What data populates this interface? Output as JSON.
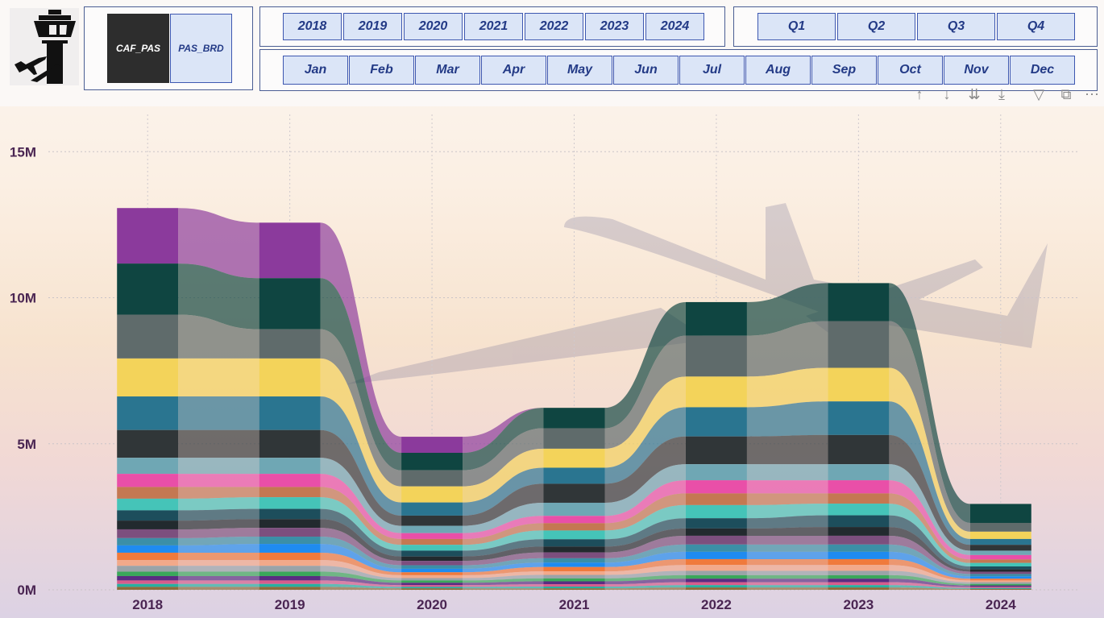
{
  "filters": {
    "measures": [
      {
        "label": "CAF_PAS",
        "selected": true
      },
      {
        "label": "PAS_BRD",
        "selected": false
      }
    ],
    "years": [
      "2018",
      "2019",
      "2020",
      "2021",
      "2022",
      "2023",
      "2024"
    ],
    "quarters": [
      "Q1",
      "Q2",
      "Q3",
      "Q4"
    ],
    "months": [
      "Jan",
      "Feb",
      "Mar",
      "Apr",
      "May",
      "Jun",
      "Jul",
      "Aug",
      "Sep",
      "Oct",
      "Nov",
      "Dec"
    ]
  },
  "visual_header_icons": [
    "arrow-up-icon",
    "arrow-down-icon",
    "double-arrow-down-icon",
    "expand-hierarchy-icon",
    "filter-icon",
    "focus-mode-icon",
    "more-options-icon"
  ],
  "chart_data": {
    "type": "ribbon",
    "categories": [
      "2018",
      "2019",
      "2020",
      "2021",
      "2022",
      "2023",
      "2024"
    ],
    "ylim": [
      0,
      16000000
    ],
    "yticks": [
      {
        "value": 0,
        "label": "0M"
      },
      {
        "value": 5000000,
        "label": "5M"
      },
      {
        "value": 10000000,
        "label": "10M"
      },
      {
        "value": 15000000,
        "label": "15M"
      }
    ],
    "grid": true,
    "series": [
      {
        "color": "#8b3a9c",
        "values": [
          1.9,
          1.9,
          0.55,
          0,
          0,
          0,
          0
        ]
      },
      {
        "color": "#0f4541",
        "values": [
          1.75,
          1.75,
          0.6,
          0.7,
          1.15,
          1.3,
          0.65
        ]
      },
      {
        "color": "#5f6b6b",
        "values": [
          1.5,
          1.0,
          0.55,
          0.7,
          1.4,
          1.6,
          0.3
        ]
      },
      {
        "color": "#f3d35a",
        "values": [
          1.3,
          1.3,
          0.55,
          0.65,
          1.05,
          1.15,
          0.25
        ]
      },
      {
        "color": "#2a7590",
        "values": [
          1.15,
          1.15,
          0.45,
          0.55,
          1.0,
          1.15,
          0.2
        ]
      },
      {
        "color": "#303638",
        "values": [
          0.95,
          0.95,
          0.35,
          0.65,
          0.95,
          1.0,
          0.2
        ]
      },
      {
        "color": "#6fa7b4",
        "values": [
          0.55,
          0.55,
          0.25,
          0.45,
          0.55,
          0.55,
          0.15
        ]
      },
      {
        "color": "#e94fa8",
        "values": [
          0.45,
          0.45,
          0.2,
          0.25,
          0.45,
          0.45,
          0.15
        ]
      },
      {
        "color": "#c47852",
        "values": [
          0.4,
          0.35,
          0.2,
          0.25,
          0.4,
          0.35,
          0.12
        ]
      },
      {
        "color": "#45c4b8",
        "values": [
          0.4,
          0.4,
          0.2,
          0.3,
          0.45,
          0.4,
          0.12
        ]
      },
      {
        "color": "#1d4e5c",
        "values": [
          0.35,
          0.35,
          0.2,
          0.25,
          0.35,
          0.4,
          0.1
        ]
      },
      {
        "color": "#222a2e",
        "values": [
          0.3,
          0.3,
          0.15,
          0.2,
          0.25,
          0.3,
          0.08
        ]
      },
      {
        "color": "#7c4f7e",
        "values": [
          0.3,
          0.3,
          0.15,
          0.2,
          0.3,
          0.3,
          0.08
        ]
      },
      {
        "color": "#3b8fa7",
        "values": [
          0.25,
          0.25,
          0.12,
          0.15,
          0.25,
          0.25,
          0.08
        ]
      },
      {
        "color": "#1f8bf0",
        "values": [
          0.25,
          0.3,
          0.12,
          0.15,
          0.25,
          0.25,
          0.08
        ]
      },
      {
        "color": "#f07a3c",
        "values": [
          0.25,
          0.25,
          0.1,
          0.15,
          0.2,
          0.2,
          0.06
        ]
      },
      {
        "color": "#f2a98a",
        "values": [
          0.2,
          0.2,
          0.1,
          0.12,
          0.2,
          0.2,
          0.06
        ]
      },
      {
        "color": "#9aa3a8",
        "values": [
          0.2,
          0.2,
          0.08,
          0.12,
          0.15,
          0.15,
          0.06
        ]
      },
      {
        "color": "#3aa85a",
        "values": [
          0.15,
          0.15,
          0.08,
          0.1,
          0.12,
          0.12,
          0.05
        ]
      },
      {
        "color": "#5a2d82",
        "values": [
          0.15,
          0.15,
          0.08,
          0.1,
          0.12,
          0.12,
          0.05
        ]
      },
      {
        "color": "#d65c8c",
        "values": [
          0.12,
          0.12,
          0.06,
          0.08,
          0.1,
          0.1,
          0.04
        ]
      },
      {
        "color": "#27b0a0",
        "values": [
          0.1,
          0.1,
          0.05,
          0.06,
          0.08,
          0.08,
          0.03
        ]
      },
      {
        "color": "#8c6d3a",
        "values": [
          0.1,
          0.1,
          0.05,
          0.05,
          0.08,
          0.08,
          0.03
        ]
      }
    ]
  }
}
